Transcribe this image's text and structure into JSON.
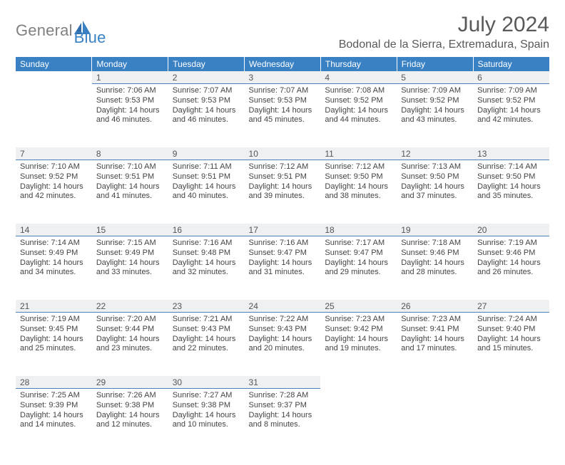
{
  "brand": {
    "general": "General",
    "blue": "Blue"
  },
  "title": "July 2024",
  "location": "Bodonal de la Sierra, Extremadura, Spain",
  "colors": {
    "header_bg": "#3a81c4",
    "header_text": "#ffffff",
    "daynum_bg": "#eef0f2",
    "daynum_border": "#4f7fb8",
    "body_text": "#444444",
    "title_text": "#595959"
  },
  "weekday_labels": [
    "Sunday",
    "Monday",
    "Tuesday",
    "Wednesday",
    "Thursday",
    "Friday",
    "Saturday"
  ],
  "weeks": [
    [
      null,
      {
        "n": "1",
        "sr": "Sunrise: 7:06 AM",
        "ss": "Sunset: 9:53 PM",
        "d1": "Daylight: 14 hours",
        "d2": "and 46 minutes."
      },
      {
        "n": "2",
        "sr": "Sunrise: 7:07 AM",
        "ss": "Sunset: 9:53 PM",
        "d1": "Daylight: 14 hours",
        "d2": "and 46 minutes."
      },
      {
        "n": "3",
        "sr": "Sunrise: 7:07 AM",
        "ss": "Sunset: 9:53 PM",
        "d1": "Daylight: 14 hours",
        "d2": "and 45 minutes."
      },
      {
        "n": "4",
        "sr": "Sunrise: 7:08 AM",
        "ss": "Sunset: 9:52 PM",
        "d1": "Daylight: 14 hours",
        "d2": "and 44 minutes."
      },
      {
        "n": "5",
        "sr": "Sunrise: 7:09 AM",
        "ss": "Sunset: 9:52 PM",
        "d1": "Daylight: 14 hours",
        "d2": "and 43 minutes."
      },
      {
        "n": "6",
        "sr": "Sunrise: 7:09 AM",
        "ss": "Sunset: 9:52 PM",
        "d1": "Daylight: 14 hours",
        "d2": "and 42 minutes."
      }
    ],
    [
      {
        "n": "7",
        "sr": "Sunrise: 7:10 AM",
        "ss": "Sunset: 9:52 PM",
        "d1": "Daylight: 14 hours",
        "d2": "and 42 minutes."
      },
      {
        "n": "8",
        "sr": "Sunrise: 7:10 AM",
        "ss": "Sunset: 9:51 PM",
        "d1": "Daylight: 14 hours",
        "d2": "and 41 minutes."
      },
      {
        "n": "9",
        "sr": "Sunrise: 7:11 AM",
        "ss": "Sunset: 9:51 PM",
        "d1": "Daylight: 14 hours",
        "d2": "and 40 minutes."
      },
      {
        "n": "10",
        "sr": "Sunrise: 7:12 AM",
        "ss": "Sunset: 9:51 PM",
        "d1": "Daylight: 14 hours",
        "d2": "and 39 minutes."
      },
      {
        "n": "11",
        "sr": "Sunrise: 7:12 AM",
        "ss": "Sunset: 9:50 PM",
        "d1": "Daylight: 14 hours",
        "d2": "and 38 minutes."
      },
      {
        "n": "12",
        "sr": "Sunrise: 7:13 AM",
        "ss": "Sunset: 9:50 PM",
        "d1": "Daylight: 14 hours",
        "d2": "and 37 minutes."
      },
      {
        "n": "13",
        "sr": "Sunrise: 7:14 AM",
        "ss": "Sunset: 9:50 PM",
        "d1": "Daylight: 14 hours",
        "d2": "and 35 minutes."
      }
    ],
    [
      {
        "n": "14",
        "sr": "Sunrise: 7:14 AM",
        "ss": "Sunset: 9:49 PM",
        "d1": "Daylight: 14 hours",
        "d2": "and 34 minutes."
      },
      {
        "n": "15",
        "sr": "Sunrise: 7:15 AM",
        "ss": "Sunset: 9:49 PM",
        "d1": "Daylight: 14 hours",
        "d2": "and 33 minutes."
      },
      {
        "n": "16",
        "sr": "Sunrise: 7:16 AM",
        "ss": "Sunset: 9:48 PM",
        "d1": "Daylight: 14 hours",
        "d2": "and 32 minutes."
      },
      {
        "n": "17",
        "sr": "Sunrise: 7:16 AM",
        "ss": "Sunset: 9:47 PM",
        "d1": "Daylight: 14 hours",
        "d2": "and 31 minutes."
      },
      {
        "n": "18",
        "sr": "Sunrise: 7:17 AM",
        "ss": "Sunset: 9:47 PM",
        "d1": "Daylight: 14 hours",
        "d2": "and 29 minutes."
      },
      {
        "n": "19",
        "sr": "Sunrise: 7:18 AM",
        "ss": "Sunset: 9:46 PM",
        "d1": "Daylight: 14 hours",
        "d2": "and 28 minutes."
      },
      {
        "n": "20",
        "sr": "Sunrise: 7:19 AM",
        "ss": "Sunset: 9:46 PM",
        "d1": "Daylight: 14 hours",
        "d2": "and 26 minutes."
      }
    ],
    [
      {
        "n": "21",
        "sr": "Sunrise: 7:19 AM",
        "ss": "Sunset: 9:45 PM",
        "d1": "Daylight: 14 hours",
        "d2": "and 25 minutes."
      },
      {
        "n": "22",
        "sr": "Sunrise: 7:20 AM",
        "ss": "Sunset: 9:44 PM",
        "d1": "Daylight: 14 hours",
        "d2": "and 23 minutes."
      },
      {
        "n": "23",
        "sr": "Sunrise: 7:21 AM",
        "ss": "Sunset: 9:43 PM",
        "d1": "Daylight: 14 hours",
        "d2": "and 22 minutes."
      },
      {
        "n": "24",
        "sr": "Sunrise: 7:22 AM",
        "ss": "Sunset: 9:43 PM",
        "d1": "Daylight: 14 hours",
        "d2": "and 20 minutes."
      },
      {
        "n": "25",
        "sr": "Sunrise: 7:23 AM",
        "ss": "Sunset: 9:42 PM",
        "d1": "Daylight: 14 hours",
        "d2": "and 19 minutes."
      },
      {
        "n": "26",
        "sr": "Sunrise: 7:23 AM",
        "ss": "Sunset: 9:41 PM",
        "d1": "Daylight: 14 hours",
        "d2": "and 17 minutes."
      },
      {
        "n": "27",
        "sr": "Sunrise: 7:24 AM",
        "ss": "Sunset: 9:40 PM",
        "d1": "Daylight: 14 hours",
        "d2": "and 15 minutes."
      }
    ],
    [
      {
        "n": "28",
        "sr": "Sunrise: 7:25 AM",
        "ss": "Sunset: 9:39 PM",
        "d1": "Daylight: 14 hours",
        "d2": "and 14 minutes."
      },
      {
        "n": "29",
        "sr": "Sunrise: 7:26 AM",
        "ss": "Sunset: 9:38 PM",
        "d1": "Daylight: 14 hours",
        "d2": "and 12 minutes."
      },
      {
        "n": "30",
        "sr": "Sunrise: 7:27 AM",
        "ss": "Sunset: 9:38 PM",
        "d1": "Daylight: 14 hours",
        "d2": "and 10 minutes."
      },
      {
        "n": "31",
        "sr": "Sunrise: 7:28 AM",
        "ss": "Sunset: 9:37 PM",
        "d1": "Daylight: 14 hours",
        "d2": "and 8 minutes."
      },
      null,
      null,
      null
    ]
  ]
}
